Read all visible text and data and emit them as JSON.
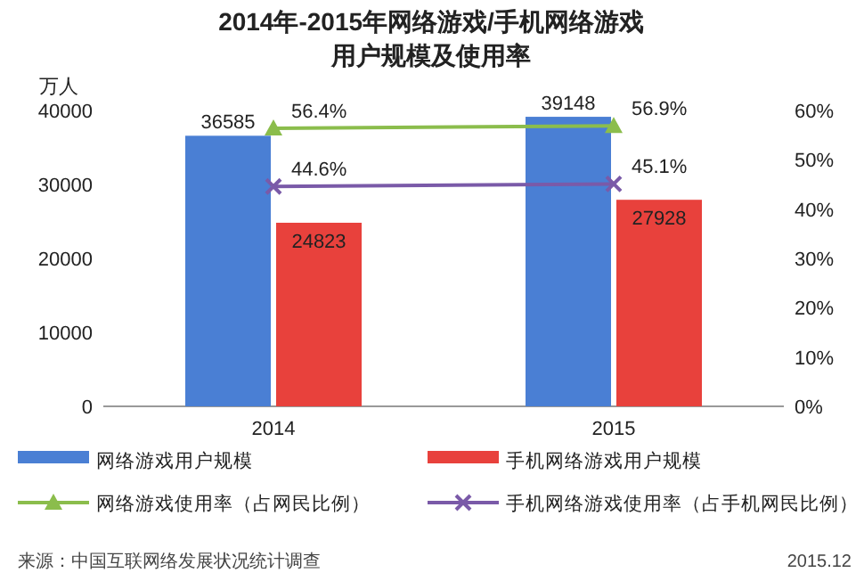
{
  "chart_data": {
    "type": "bar",
    "title": "2014年-2015年网络游戏/手机网络游戏",
    "subtitle": "用户规模及使用率",
    "ylabel": "万人",
    "categories": [
      "2014",
      "2015"
    ],
    "series": [
      {
        "name": "网络游戏用户规模",
        "color": "#4a7fd4",
        "values": [
          36585,
          39148
        ],
        "value_labels": [
          "36585",
          "39148"
        ]
      },
      {
        "name": "手机网络游戏用户规模",
        "color": "#e8413c",
        "values": [
          24823,
          27928
        ],
        "value_labels": [
          "24823",
          "27928"
        ]
      },
      {
        "name": "网络游戏使用率（占网民比例）",
        "type": "line",
        "axis": "y2",
        "color": "#8bbd4c",
        "marker": "triangle",
        "values": [
          56.4,
          56.9
        ],
        "value_labels": [
          "56.4%",
          "56.9%"
        ]
      },
      {
        "name": "手机网络游戏使用率（占手机网民比例）",
        "type": "line",
        "axis": "y2",
        "color": "#7a5aa8",
        "marker": "cross",
        "values": [
          44.6,
          45.1
        ],
        "value_labels": [
          "44.6%",
          "45.1%"
        ]
      }
    ],
    "ylim": [
      0,
      40000
    ],
    "yticks": [
      0,
      10000,
      20000,
      30000,
      40000
    ],
    "y2lim": [
      0,
      60
    ],
    "y2ticks": [
      {
        "value": 0,
        "label": "0%"
      },
      {
        "value": 10,
        "label": "10%"
      },
      {
        "value": 20,
        "label": "20%"
      },
      {
        "value": 30,
        "label": "30%"
      },
      {
        "value": 40,
        "label": "40%"
      },
      {
        "value": 50,
        "label": "50%"
      },
      {
        "value": 60,
        "label": "60%"
      }
    ],
    "legend": "bottom",
    "grid": false,
    "annotations": [
      "来源：中国互联网络发展状况统计调查",
      "2015.12"
    ]
  }
}
